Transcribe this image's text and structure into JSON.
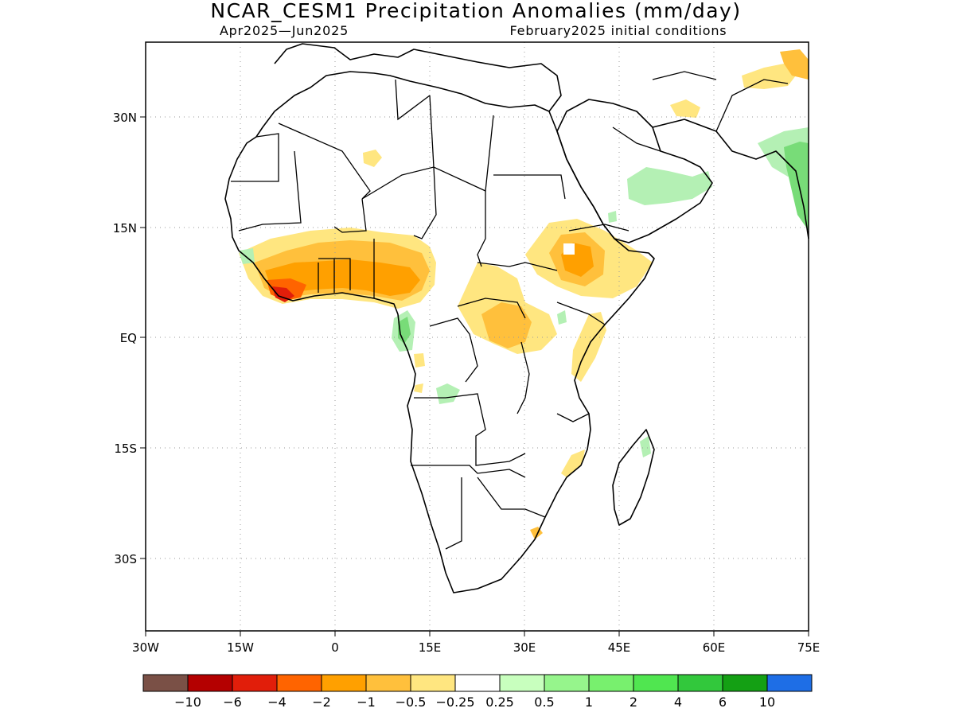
{
  "map": {
    "title": "NCAR_CESM1 Precipitation Anomalies (mm/day)",
    "subtitle_left": "Apr2025—Jun2025",
    "subtitle_right": "February2025 initial conditions",
    "lat_ticks": [
      "30N",
      "15N",
      "EQ",
      "15S",
      "30S"
    ],
    "lon_ticks": [
      "30W",
      "15W",
      "0",
      "15E",
      "30E",
      "45E",
      "60E",
      "75E"
    ],
    "lon_range": [
      -30,
      75
    ],
    "lat_range": [
      -40,
      40
    ],
    "colors": {
      "dry_light": "#ffe680",
      "dry_mid": "#ffc03c",
      "dry_strong": "#ffa000",
      "dry_very": "#ff6400",
      "dry_extreme": "#e11e0a",
      "wet_light": "#b4f0b4",
      "wet_mid": "#78dc78"
    }
  },
  "colorbar": {
    "boxes": [
      "#7a5046",
      "#b40000",
      "#e11e0a",
      "#ff6400",
      "#ffa000",
      "#ffc03c",
      "#ffe680",
      "#ffffff",
      "#c8ffbe",
      "#96f58c",
      "#78f06e",
      "#50e650",
      "#32c83c",
      "#14a014",
      "#1e6ee6"
    ],
    "labels": [
      "−10",
      "−6",
      "−4",
      "−2",
      "−1",
      "−0.5",
      "−0.25",
      "0.25",
      "0.5",
      "1",
      "2",
      "4",
      "6",
      "10"
    ]
  }
}
